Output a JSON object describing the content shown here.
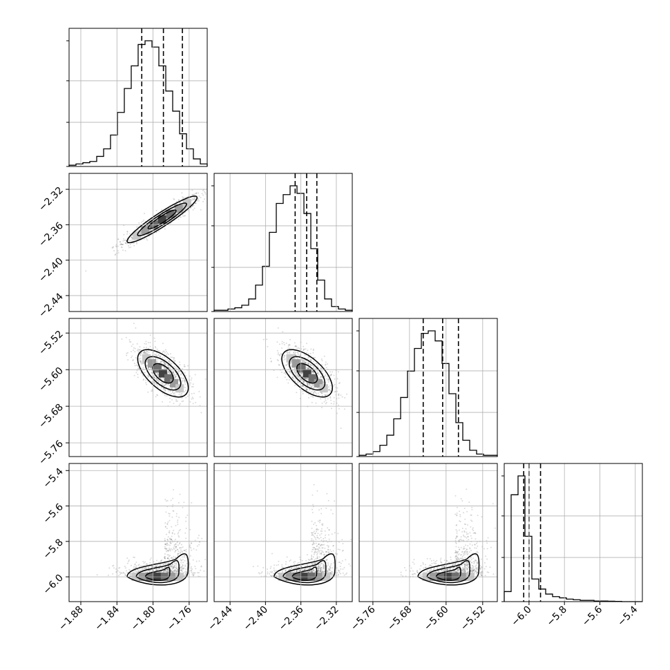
{
  "chart_data": {
    "type": "corner",
    "description_free": true,
    "grid": true,
    "params": [
      {
        "range": [
          -1.893,
          -1.74
        ],
        "ticks": [
          -1.88,
          -1.84,
          -1.8,
          -1.76
        ],
        "tick_labels": [
          "−1.88",
          "−1.84",
          "−1.80",
          "−1.76"
        ],
        "quantiles": [
          -1.8125,
          -1.7885,
          -1.7675
        ],
        "mean": -1.789,
        "sd": 0.0195,
        "skew": 0
      },
      {
        "range": [
          -2.458,
          -2.302
        ],
        "ticks": [
          -2.44,
          -2.4,
          -2.36,
          -2.32
        ],
        "tick_labels": [
          "−2.44",
          "−2.40",
          "−2.36",
          "−2.32"
        ],
        "quantiles": [
          -2.3665,
          -2.3535,
          -2.342
        ],
        "mean": -2.353,
        "sd": 0.012,
        "skew": 0
      },
      {
        "range": [
          -5.79,
          -5.488
        ],
        "ticks": [
          -5.76,
          -5.68,
          -5.6,
          -5.52
        ],
        "tick_labels": [
          "−5.76",
          "−5.68",
          "−5.60",
          "−5.52"
        ],
        "quantiles": [
          -5.65,
          -5.6075,
          -5.573
        ],
        "mean": -5.609,
        "sd": 0.038,
        "skew": 0
      },
      {
        "range": [
          -6.14,
          -5.36
        ],
        "ticks": [
          -6.0,
          -5.8,
          -5.6,
          -5.4
        ],
        "tick_labels": [
          "−6.0",
          "−5.8",
          "−5.6",
          "−5.4"
        ],
        "quantiles": [
          -6.03,
          -6.0,
          -5.935
        ],
        "mode": -6.0,
        "sd": 0.03,
        "skew": 1
      }
    ],
    "panels": {
      "hist": [
        {
          "param": 0,
          "counts": [
            1,
            2,
            3,
            4,
            8,
            14,
            25,
            43,
            62,
            80,
            97,
            100,
            95,
            80,
            60,
            44,
            26,
            14,
            6,
            2
          ]
        },
        {
          "param": 1,
          "counts": [
            1,
            1,
            2,
            3,
            5,
            10,
            21,
            36,
            63,
            86,
            93,
            100,
            94,
            78,
            50,
            25,
            10,
            4,
            2,
            1
          ]
        },
        {
          "param": 2,
          "counts": [
            1,
            2,
            4,
            9,
            17,
            30,
            47,
            68,
            86,
            98,
            100,
            92,
            74,
            50,
            27,
            13,
            5,
            2,
            1,
            1
          ]
        },
        {
          "param": 3,
          "counts": [
            8,
            85,
            100,
            52,
            18,
            10,
            6,
            4,
            3,
            2,
            1.5,
            1,
            1,
            0.5,
            0.5,
            0.3,
            0.2,
            0,
            0,
            0
          ]
        }
      ],
      "contour_2d": [
        {
          "x": 0,
          "y": 1,
          "center": [
            -1.79,
            -2.354
          ],
          "shape": "correlated-positive"
        },
        {
          "x": 0,
          "y": 2,
          "center": [
            -1.789,
            -5.608
          ],
          "shape": "correlated-negative"
        },
        {
          "x": 1,
          "y": 2,
          "center": [
            -2.353,
            -5.608
          ],
          "shape": "correlated-negative"
        },
        {
          "x": 0,
          "y": 3,
          "center": [
            -1.795,
            -6.0
          ],
          "shape": "skewed-up"
        },
        {
          "x": 1,
          "y": 3,
          "center": [
            -2.356,
            -6.0
          ],
          "shape": "skewed-up"
        },
        {
          "x": 2,
          "y": 3,
          "center": [
            -5.595,
            -6.0
          ],
          "shape": "skewed-up"
        }
      ]
    },
    "colors": {
      "line": "#000000",
      "grid": "#b0b0b0",
      "points": "#555555"
    }
  }
}
